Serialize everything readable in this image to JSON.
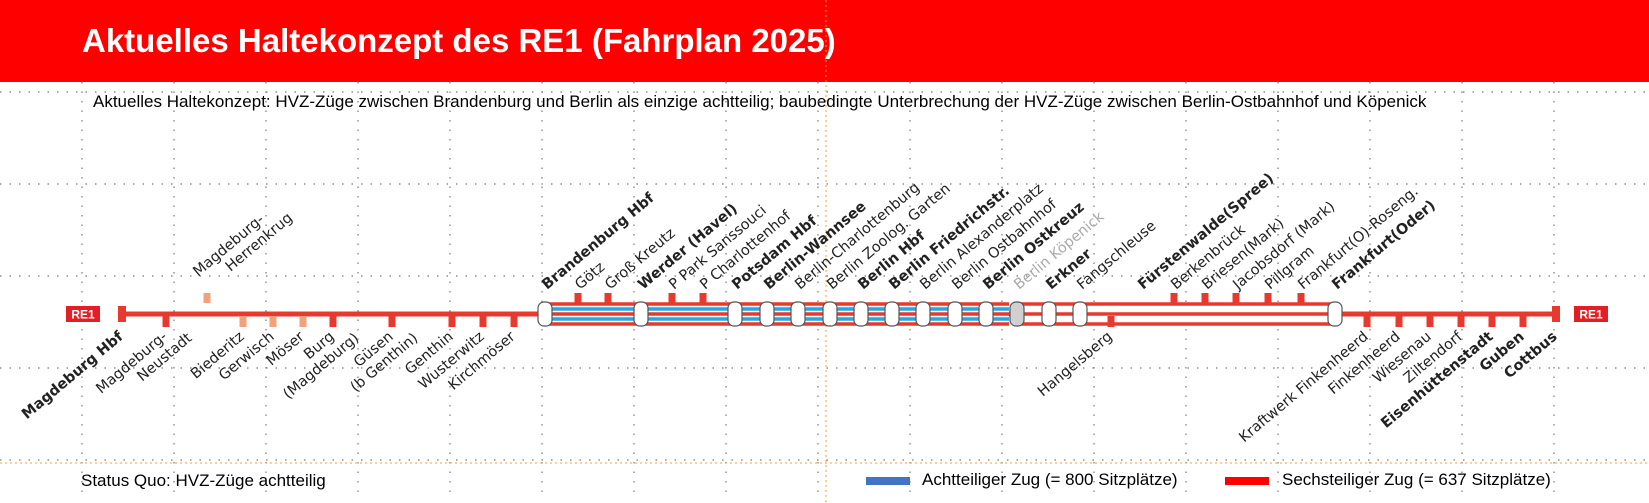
{
  "title": "Aktuelles Haltekonzept des RE1 (Fahrplan 2025)",
  "subtitle": "Aktuelles Haltekonzept: HVZ-Züge zwischen Brandenburg und Berlin als einzige achtteilig; baubedingte Unterbrechung der HVZ-Züge zwischen Berlin-Ostbahnhof und Köpenick",
  "status_note": "Status Quo: HVZ-Züge achtteilig",
  "line_badge": "RE1",
  "legend": [
    {
      "label": "Achtteiliger Zug (= 800 Sitzplätze)",
      "color": "#4472c4"
    },
    {
      "label": "Sechsteiliger Zug (= 637 Sitzplätze)",
      "color": "#ff0000"
    }
  ],
  "colors": {
    "header": "#ff0000",
    "line_red": "#e8392f",
    "eight_car_blue": "#2aa5e0",
    "orange_stop": "#f4a07a",
    "closed_gray": "#aaaaaa"
  },
  "stations": [
    {
      "name": "Magdeburg Hbf",
      "bold": true,
      "side": "below",
      "kind": "end"
    },
    {
      "name": "Magdeburg-Neustadt",
      "bold": false,
      "side": "below",
      "kind": "tick",
      "lines": [
        "Magdeburg-",
        "Neustadt"
      ]
    },
    {
      "name": "Magdeburg-Herrenkrug",
      "bold": false,
      "side": "above",
      "kind": "orange",
      "lines": [
        "Magdeburg-",
        "Herrenkrug"
      ]
    },
    {
      "name": "Biederitz",
      "bold": false,
      "side": "below",
      "kind": "orange"
    },
    {
      "name": "Gerwisch",
      "bold": false,
      "side": "below",
      "kind": "orange"
    },
    {
      "name": "Möser",
      "bold": false,
      "side": "below",
      "kind": "orange"
    },
    {
      "name": "Burg (Magdeburg)",
      "bold": false,
      "side": "below",
      "kind": "tick",
      "lines": [
        "Burg",
        "(Magdeburg)"
      ]
    },
    {
      "name": "Güsen (b Genthin)",
      "bold": false,
      "side": "below",
      "kind": "tick",
      "lines": [
        "Güsen",
        "(b Genthin)"
      ]
    },
    {
      "name": "Genthin",
      "bold": false,
      "side": "below",
      "kind": "tick"
    },
    {
      "name": "Wusterwitz",
      "bold": false,
      "side": "below",
      "kind": "tick"
    },
    {
      "name": "Kirchmöser",
      "bold": false,
      "side": "below",
      "kind": "tick"
    },
    {
      "name": "Brandenburg Hbf",
      "bold": true,
      "side": "above",
      "kind": "pill"
    },
    {
      "name": "Götz",
      "bold": false,
      "side": "above",
      "kind": "tick"
    },
    {
      "name": "Groß Kreutz",
      "bold": false,
      "side": "above",
      "kind": "tick"
    },
    {
      "name": "Werder (Havel)",
      "bold": true,
      "side": "above",
      "kind": "pill"
    },
    {
      "name": "P Park Sanssouci",
      "bold": false,
      "side": "above",
      "kind": "tick"
    },
    {
      "name": "P Charlottenhof",
      "bold": false,
      "side": "above",
      "kind": "tick"
    },
    {
      "name": "Potsdam Hbf",
      "bold": true,
      "side": "above",
      "kind": "pill"
    },
    {
      "name": "Berlin-Wannsee",
      "bold": true,
      "side": "above",
      "kind": "pill"
    },
    {
      "name": "Berlin-Charlottenburg",
      "bold": false,
      "side": "above",
      "kind": "pill"
    },
    {
      "name": "Berlin Zoolog. Garten",
      "bold": false,
      "side": "above",
      "kind": "pill"
    },
    {
      "name": "Berlin Hbf",
      "bold": true,
      "side": "above",
      "kind": "pill"
    },
    {
      "name": "Berlin Friedrichstr.",
      "bold": true,
      "side": "above",
      "kind": "pill"
    },
    {
      "name": "Berlin Alexanderplatz",
      "bold": false,
      "side": "above",
      "kind": "pill"
    },
    {
      "name": "Berlin Ostbahnhof",
      "bold": false,
      "side": "above",
      "kind": "pill"
    },
    {
      "name": "Berlin Ostkreuz",
      "bold": true,
      "side": "above",
      "kind": "pill"
    },
    {
      "name": "Berlin Köpenick",
      "bold": false,
      "side": "above",
      "kind": "pill-gray"
    },
    {
      "name": "Erkner",
      "bold": true,
      "side": "above",
      "kind": "pill"
    },
    {
      "name": "Fangschleuse",
      "bold": false,
      "side": "above",
      "kind": "pill"
    },
    {
      "name": "Hangelsberg",
      "bold": false,
      "side": "below",
      "kind": "tick"
    },
    {
      "name": "Fürstenwalde(Spree)",
      "bold": true,
      "side": "above",
      "kind": "none"
    },
    {
      "name": "Berkenbrück",
      "bold": false,
      "side": "above",
      "kind": "tick"
    },
    {
      "name": "Briesen(Mark)",
      "bold": false,
      "side": "above",
      "kind": "tick"
    },
    {
      "name": "Jacobsdorf (Mark)",
      "bold": false,
      "side": "above",
      "kind": "tick"
    },
    {
      "name": "Pillgram",
      "bold": false,
      "side": "above",
      "kind": "tick"
    },
    {
      "name": "Frankfurt(O)-Roseng.",
      "bold": false,
      "side": "above",
      "kind": "tick"
    },
    {
      "name": "Frankfurt(Oder)",
      "bold": true,
      "side": "above",
      "kind": "pill"
    },
    {
      "name": "Kraftwerk Finkenheerd",
      "bold": false,
      "side": "below",
      "kind": "tick"
    },
    {
      "name": "Finkenheerd",
      "bold": false,
      "side": "below",
      "kind": "tick"
    },
    {
      "name": "Wiesenau",
      "bold": false,
      "side": "below",
      "kind": "tick"
    },
    {
      "name": "Ziltendorf",
      "bold": false,
      "side": "below",
      "kind": "tick"
    },
    {
      "name": "Eisenhüttenstadt",
      "bold": true,
      "side": "below",
      "kind": "tick"
    },
    {
      "name": "Guben",
      "bold": true,
      "side": "below",
      "kind": "tick"
    },
    {
      "name": "Cottbus",
      "bold": true,
      "side": "below",
      "kind": "end"
    }
  ]
}
